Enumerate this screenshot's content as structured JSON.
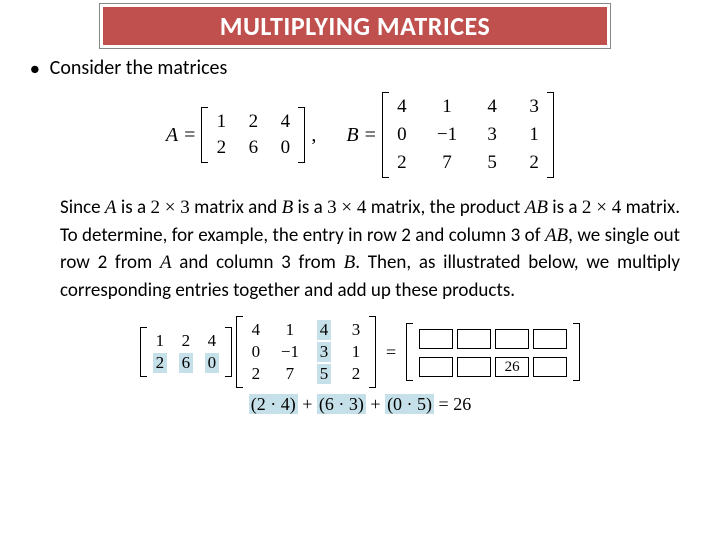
{
  "title": "MULTIPLYING MATRICES",
  "intro": "Consider the matrices",
  "matrixA": {
    "label": "A",
    "rows": [
      [
        "1",
        "2",
        "4"
      ],
      [
        "2",
        "6",
        "0"
      ]
    ]
  },
  "matrixB": {
    "label": "B",
    "rows": [
      [
        "4",
        "1",
        "4",
        "3"
      ],
      [
        "0",
        "−1",
        "3",
        "1"
      ],
      [
        "2",
        "7",
        "5",
        "2"
      ]
    ]
  },
  "paragraph_parts": {
    "p1": "Since ",
    "A": "A",
    "p2": " is a ",
    "dim23": "2 × 3",
    "p3": " matrix and ",
    "B": "B",
    "p4": " is a ",
    "dim34": "3 × 4",
    "p5": " matrix, the product ",
    "AB": "AB",
    "p6": " is a ",
    "dim24": "2 × 4",
    "p7": " matrix. To determine, for example, the entry in row 2 and column 3 of ",
    "AB2": "AB",
    "p8": ", we single out row 2 from ",
    "A2": "A",
    "p9": " and column 3 from ",
    "B2": "B",
    "p10": ". Then, as illustrated below, we multiply corresponding entries together and add up these products."
  },
  "example": {
    "A_rows": [
      [
        "1",
        "2",
        "4"
      ],
      [
        "2",
        "6",
        "0"
      ]
    ],
    "A_highlight_row": 1,
    "B_rows": [
      [
        "4",
        "1",
        "4",
        "3"
      ],
      [
        "0",
        "−1",
        "3",
        "1"
      ],
      [
        "2",
        "7",
        "5",
        "2"
      ]
    ],
    "B_highlight_col": 2,
    "result_value": "26",
    "result_pos": {
      "row": 1,
      "col": 2
    }
  },
  "calculation": {
    "t1": "(2 · 4)",
    "plus": " + ",
    "t2": "(6 · 3)",
    "t3": "(0 · 5)",
    "eq": " = 26"
  },
  "colors": {
    "title_bg": "#c0504d",
    "title_text": "#ffffff",
    "highlight": "#c5e0e8",
    "text": "#000000"
  }
}
